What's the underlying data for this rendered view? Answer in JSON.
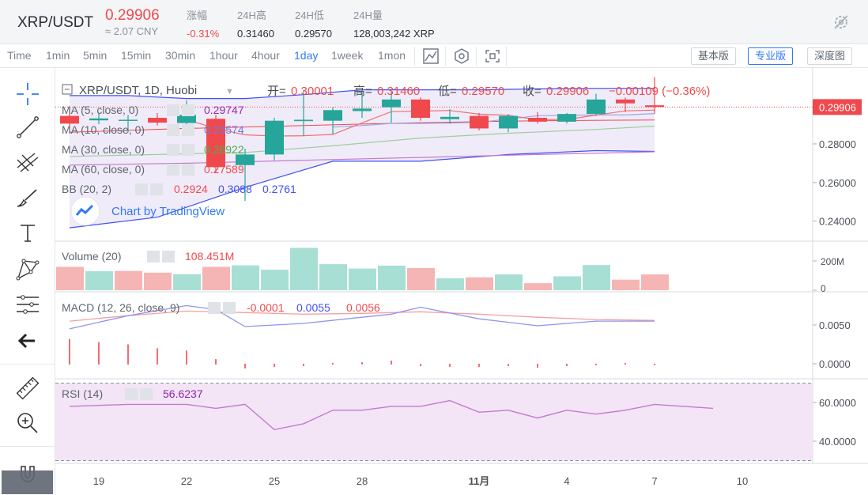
{
  "header": {
    "pair": "XRP/USDT",
    "last_price": "0.29906",
    "cny_value": "≈ 2.07 CNY",
    "stats": [
      {
        "label": "涨幅",
        "value": "-0.31%",
        "color": "#f0494d"
      },
      {
        "label": "24H高",
        "value": "0.31460"
      },
      {
        "label": "24H低",
        "value": "0.29570"
      },
      {
        "label": "24H量",
        "value": "128,003,242 XRP"
      }
    ],
    "settings_icon": "settings-off-icon"
  },
  "toolbar": {
    "timeframes": [
      "Time",
      "1min",
      "5min",
      "15min",
      "30min",
      "1hour",
      "4hour",
      "1day",
      "1week",
      "1mon"
    ],
    "active_timeframe": "1day",
    "tool_icons": [
      "indicator-icon",
      "gear-hex-icon",
      "fullscreen-icon"
    ],
    "views": [
      "基本版",
      "专业版",
      "深度图"
    ],
    "active_view": "专业版"
  },
  "left_tools": [
    "crosshair-icon",
    "trend-line-icon",
    "pitchfork-icon",
    "brush-icon",
    "text-icon",
    "pattern-icon",
    "fib-icon",
    "back-arrow-icon",
    "ruler-icon",
    "zoom-in-icon",
    "magnet-icon"
  ],
  "legend": {
    "title": "XRP/USDT, 1D, Huobi",
    "ohlc": [
      {
        "label": "开=",
        "value": "0.30001"
      },
      {
        "label": "高=",
        "value": "0.31460"
      },
      {
        "label": "低=",
        "value": "0.29570"
      },
      {
        "label": "收=",
        "value": "0.29906"
      }
    ],
    "change": "−0.00109 (−0.36%)",
    "indicators": [
      {
        "name": "MA (5, close, 0)",
        "value": "0.29747",
        "color": "#9c27b0"
      },
      {
        "name": "MA (10, close, 0)",
        "value": "0.29574",
        "color": "#6c7ae0"
      },
      {
        "name": "MA (30, close, 0)",
        "value": "0.28922",
        "color": "#4caf50"
      },
      {
        "name": "MA (60, close, 0)",
        "value": "0.27589",
        "color": "#f0494d"
      }
    ],
    "bb": {
      "name": "BB (20, 2)",
      "values": [
        "0.2924",
        "0.3088",
        "0.2761"
      ],
      "colors": [
        "#f0494d",
        "#3f51f5",
        "#3f51f5"
      ]
    },
    "watermark": "Chart by TradingView"
  },
  "volume": {
    "name": "Volume (20)",
    "value": "108.451M"
  },
  "macd": {
    "name": "MACD (12, 26, close, 9)",
    "values": [
      "-0.0001",
      "0.0055",
      "0.0056"
    ],
    "colors": [
      "#f0494d",
      "#3f51f5",
      "#f0494d"
    ]
  },
  "rsi": {
    "name": "RSI (14)",
    "value": "56.6237"
  },
  "colors": {
    "up": "#26a69a",
    "down": "#f0494d",
    "accent": "#3179f5",
    "rsi_bg": "#f3e5f5"
  },
  "chart_data": {
    "type": "candlestick",
    "x_tick_labels": [
      "19",
      "22",
      "25",
      "28",
      "11月",
      "4",
      "7",
      "10"
    ],
    "x_tick_days": [
      1,
      4,
      7,
      10,
      14,
      17,
      20,
      23
    ],
    "price_axis": {
      "ticks": [
        "0.28000",
        "0.26000",
        "0.24000"
      ],
      "tick_values": [
        0.28,
        0.26,
        0.24
      ],
      "range": [
        0.23,
        0.3185
      ],
      "current_label": "0.29906"
    },
    "candles": [
      {
        "d": 0,
        "o": 0.2945,
        "h": 0.2975,
        "l": 0.2885,
        "c": 0.2905
      },
      {
        "d": 1,
        "o": 0.2922,
        "h": 0.2962,
        "l": 0.2902,
        "c": 0.2932
      },
      {
        "d": 2,
        "o": 0.2925,
        "h": 0.295,
        "l": 0.286,
        "c": 0.2925
      },
      {
        "d": 3,
        "o": 0.2935,
        "h": 0.296,
        "l": 0.2895,
        "c": 0.291
      },
      {
        "d": 4,
        "o": 0.2908,
        "h": 0.3025,
        "l": 0.289,
        "c": 0.295
      },
      {
        "d": 5,
        "o": 0.293,
        "h": 0.295,
        "l": 0.265,
        "c": 0.268
      },
      {
        "d": 6,
        "o": 0.269,
        "h": 0.2775,
        "l": 0.2505,
        "c": 0.2745
      },
      {
        "d": 7,
        "o": 0.2745,
        "h": 0.2935,
        "l": 0.2715,
        "c": 0.292
      },
      {
        "d": 8,
        "o": 0.2918,
        "h": 0.308,
        "l": 0.284,
        "c": 0.2925
      },
      {
        "d": 9,
        "o": 0.292,
        "h": 0.299,
        "l": 0.285,
        "c": 0.2975
      },
      {
        "d": 10,
        "o": 0.297,
        "h": 0.308,
        "l": 0.2935,
        "c": 0.2983
      },
      {
        "d": 11,
        "o": 0.299,
        "h": 0.307,
        "l": 0.291,
        "c": 0.303
      },
      {
        "d": 12,
        "o": 0.303,
        "h": 0.304,
        "l": 0.292,
        "c": 0.2935
      },
      {
        "d": 13,
        "o": 0.2928,
        "h": 0.298,
        "l": 0.2905,
        "c": 0.294
      },
      {
        "d": 14,
        "o": 0.2945,
        "h": 0.296,
        "l": 0.287,
        "c": 0.288
      },
      {
        "d": 15,
        "o": 0.288,
        "h": 0.2955,
        "l": 0.286,
        "c": 0.2945
      },
      {
        "d": 16,
        "o": 0.2935,
        "h": 0.2965,
        "l": 0.2905,
        "c": 0.2915
      },
      {
        "d": 17,
        "o": 0.2915,
        "h": 0.296,
        "l": 0.2905,
        "c": 0.2955
      },
      {
        "d": 18,
        "o": 0.2955,
        "h": 0.306,
        "l": 0.2945,
        "c": 0.303
      },
      {
        "d": 19,
        "o": 0.303,
        "h": 0.304,
        "l": 0.2965,
        "c": 0.301
      },
      {
        "d": 20,
        "o": 0.3,
        "h": 0.3146,
        "l": 0.2957,
        "c": 0.2991
      }
    ],
    "ma5": [
      [
        4,
        0.2926
      ],
      [
        5,
        0.288
      ],
      [
        6,
        0.2847
      ],
      [
        7,
        0.2841
      ],
      [
        8,
        0.2842
      ],
      [
        9,
        0.2849
      ],
      [
        10,
        0.2909
      ],
      [
        11,
        0.2967
      ],
      [
        12,
        0.297
      ],
      [
        13,
        0.2973
      ],
      [
        14,
        0.2954
      ],
      [
        15,
        0.2948
      ],
      [
        16,
        0.2925
      ],
      [
        17,
        0.2927
      ],
      [
        18,
        0.2949
      ],
      [
        19,
        0.2971
      ],
      [
        20,
        0.2975
      ]
    ],
    "ma10": [
      [
        9,
        0.2887
      ],
      [
        10,
        0.2895
      ],
      [
        11,
        0.2906
      ],
      [
        12,
        0.2906
      ],
      [
        13,
        0.2908
      ],
      [
        14,
        0.2912
      ],
      [
        15,
        0.2928
      ],
      [
        16,
        0.2946
      ],
      [
        17,
        0.2948
      ],
      [
        18,
        0.295
      ],
      [
        19,
        0.295
      ],
      [
        20,
        0.2957
      ]
    ],
    "ma30": [
      [
        0,
        0.2735
      ],
      [
        3,
        0.2745
      ],
      [
        6,
        0.2755
      ],
      [
        9,
        0.279
      ],
      [
        12,
        0.283
      ],
      [
        15,
        0.2855
      ],
      [
        18,
        0.2875
      ],
      [
        20,
        0.2892
      ]
    ],
    "ma60": [
      [
        0,
        0.269
      ],
      [
        4,
        0.27
      ],
      [
        8,
        0.2715
      ],
      [
        12,
        0.273
      ],
      [
        16,
        0.2745
      ],
      [
        20,
        0.2759
      ]
    ],
    "bb_upper": [
      [
        0,
        0.305
      ],
      [
        2,
        0.305
      ],
      [
        4,
        0.3035
      ],
      [
        6,
        0.3035
      ],
      [
        8,
        0.3055
      ],
      [
        10,
        0.308
      ],
      [
        12,
        0.308
      ],
      [
        14,
        0.308
      ],
      [
        16,
        0.3085
      ],
      [
        18,
        0.3088
      ],
      [
        20,
        0.3088
      ]
    ],
    "bb_lower": [
      [
        0,
        0.2365
      ],
      [
        3,
        0.242
      ],
      [
        6,
        0.2575
      ],
      [
        9,
        0.271
      ],
      [
        12,
        0.271
      ],
      [
        15,
        0.2745
      ],
      [
        18,
        0.2765
      ],
      [
        20,
        0.2761
      ]
    ],
    "bb_basis": [
      [
        0,
        0.286
      ],
      [
        4,
        0.288
      ],
      [
        8,
        0.2895
      ],
      [
        12,
        0.291
      ],
      [
        16,
        0.292
      ],
      [
        20,
        0.2924
      ]
    ],
    "volume": {
      "axis_ticks": [
        "200M",
        "0"
      ],
      "tick_values": [
        200,
        0
      ],
      "bars_millions": [
        [
          0,
          160
        ],
        [
          1,
          130
        ],
        [
          2,
          132
        ],
        [
          3,
          120
        ],
        [
          4,
          110
        ],
        [
          5,
          160
        ],
        [
          6,
          170
        ],
        [
          7,
          140
        ],
        [
          8,
          290
        ],
        [
          9,
          178
        ],
        [
          10,
          148
        ],
        [
          11,
          168
        ],
        [
          12,
          152
        ],
        [
          13,
          82
        ],
        [
          14,
          88
        ],
        [
          15,
          108
        ],
        [
          16,
          48
        ],
        [
          17,
          95
        ],
        [
          18,
          172
        ],
        [
          19,
          72
        ],
        [
          20,
          108
        ]
      ],
      "bar_up": [
        false,
        true,
        false,
        false,
        true,
        false,
        true,
        true,
        true,
        true,
        true,
        true,
        false,
        true,
        false,
        true,
        false,
        true,
        true,
        false,
        false
      ]
    },
    "macd": {
      "axis_ticks": [
        "0.0050",
        "0.0000"
      ],
      "tick_values": [
        0.005,
        0.0
      ],
      "macd_line": [
        [
          0,
          0.0045
        ],
        [
          2,
          0.0062
        ],
        [
          4,
          0.0075
        ],
        [
          5,
          0.007
        ],
        [
          6,
          0.0048
        ],
        [
          8,
          0.0052
        ],
        [
          10,
          0.006
        ],
        [
          11,
          0.0064
        ],
        [
          12,
          0.0073
        ],
        [
          14,
          0.0058
        ],
        [
          16,
          0.0049
        ],
        [
          18,
          0.0055
        ],
        [
          20,
          0.0055
        ]
      ],
      "signal_line": [
        [
          0,
          0.0055
        ],
        [
          2,
          0.0062
        ],
        [
          4,
          0.0068
        ],
        [
          6,
          0.0066
        ],
        [
          8,
          0.0064
        ],
        [
          10,
          0.0065
        ],
        [
          12,
          0.0067
        ],
        [
          14,
          0.0064
        ],
        [
          16,
          0.006
        ],
        [
          18,
          0.0057
        ],
        [
          20,
          0.0056
        ]
      ],
      "histogram": [
        [
          0,
          0.0032
        ],
        [
          1,
          0.0028
        ],
        [
          2,
          0.0025
        ],
        [
          3,
          0.002
        ],
        [
          4,
          0.0017
        ],
        [
          5,
          0.0006
        ],
        [
          6,
          -0.0005
        ],
        [
          7,
          -0.0003
        ],
        [
          8,
          -0.0002
        ],
        [
          9,
          0.0001
        ],
        [
          10,
          0.0002
        ],
        [
          11,
          0.0004
        ],
        [
          12,
          -0.0002
        ],
        [
          13,
          -0.0003
        ],
        [
          14,
          -0.0003
        ],
        [
          15,
          -0.0002
        ],
        [
          16,
          -0.0004
        ],
        [
          17,
          -0.0002
        ],
        [
          18,
          -0.0001
        ],
        [
          19,
          0.0001
        ],
        [
          20,
          -0.0001
        ]
      ]
    },
    "rsi": {
      "axis_ticks": [
        "60.0000",
        "40.0000"
      ],
      "tick_values": [
        60,
        40
      ],
      "upper_band": 70,
      "lower_band": 30,
      "values": [
        [
          0,
          58
        ],
        [
          2,
          59
        ],
        [
          4,
          59
        ],
        [
          5,
          57
        ],
        [
          6,
          59
        ],
        [
          7,
          46
        ],
        [
          8,
          49
        ],
        [
          9,
          56
        ],
        [
          10,
          56
        ],
        [
          11,
          58
        ],
        [
          12,
          58
        ],
        [
          13,
          61
        ],
        [
          14,
          55
        ],
        [
          15,
          56
        ],
        [
          16,
          52
        ],
        [
          17,
          56
        ],
        [
          18,
          54
        ],
        [
          19,
          56
        ],
        [
          20,
          59
        ],
        [
          21,
          58
        ],
        [
          22,
          57
        ]
      ]
    }
  }
}
